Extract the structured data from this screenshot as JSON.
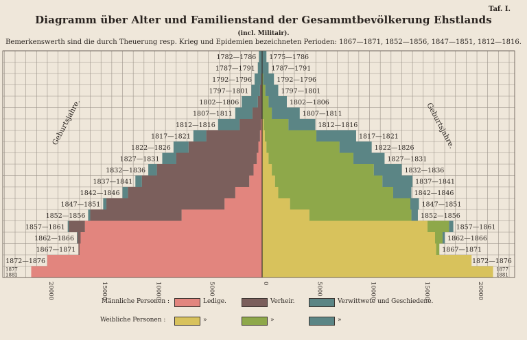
{
  "header": {
    "plate": "Taf. I.",
    "title": "Diagramm über Alter und Familienstand der Gesammtbevölkerung Ehstlands",
    "subtitle": "(incl. Militair).",
    "note": "Bemerkenswerth sind die durch Theuerung resp. Krieg und Epidemien bezeichneten Perioden: 1867—1871, 1852—1856, 1847—1851, 1812—1816."
  },
  "legend": {
    "male_label": "Männliche Personen :",
    "female_label": "Weibliche Personen :",
    "categories": [
      "Ledige.",
      "Verheir.",
      "Verwittwete und Geschiedene."
    ],
    "ditto": "»",
    "colors": {
      "male": [
        "#e2857e",
        "#7b5f5c",
        "#5b8585"
      ],
      "female": [
        "#d8c25c",
        "#8ea84a",
        "#5b8585"
      ]
    }
  },
  "chart_data": {
    "type": "population-pyramid",
    "side_label": "Geburtsjahre.",
    "x_ticks": [
      20000,
      15000,
      10000,
      5000,
      0,
      5000,
      10000,
      15000,
      20000
    ],
    "xlim": [
      0,
      22000
    ],
    "age_groups": [
      "1782—1786",
      "1787—1791",
      "1792—1796",
      "1797—1801",
      "1802—1806",
      "1807—1811",
      "1812—1816",
      "1817—1821",
      "1822—1826",
      "1827—1831",
      "1832—1836",
      "1837—1841",
      "1842—1846",
      "1847—1851",
      "1852—1856",
      "1857—1861",
      "1862—1866",
      "1867—1871",
      "1872—1876",
      "1877—1881"
    ],
    "male_labels": [
      "1782—1786",
      "1787—1791",
      "1792—1796",
      "1797—1801",
      "1802—1806",
      "1807—1811",
      "1812—1816",
      "1817—1821",
      "1822—1826",
      "1827—1831",
      "1832—1836",
      "1837—1841",
      "1842—1846",
      "1847—1851",
      "1852—1856",
      "1857—1861",
      "1862—1866",
      "1867—1871",
      "1872—1876",
      "1877 1881"
    ],
    "female_labels": [
      "1775—1786",
      "1787—1791",
      "1792—1796",
      "1797—1801",
      "1802—1806",
      "1807—1811",
      "1812—1816",
      "1817—1821",
      "1822—1826",
      "1827—1831",
      "1832—1836",
      "1837—1841",
      "1842—1846",
      "1847—1851",
      "1852—1856",
      "1857—1861",
      "1862—1866",
      "1867—1871",
      "1872—1876",
      "1877 1881"
    ],
    "male": {
      "ledige": [
        0,
        0,
        0,
        0,
        0,
        0,
        100,
        200,
        350,
        500,
        800,
        1200,
        2500,
        3500,
        7500,
        16500,
        16900,
        17000,
        20000,
        21500
      ],
      "verheiratet": [
        0,
        0,
        100,
        200,
        400,
        900,
        2000,
        5000,
        6500,
        7500,
        9000,
        10000,
        10000,
        11000,
        8500,
        1500,
        300,
        100,
        0,
        0
      ],
      "verwitwet": [
        300,
        400,
        600,
        800,
        1500,
        1600,
        2000,
        1200,
        1400,
        1300,
        800,
        600,
        500,
        300,
        200,
        100,
        50,
        0,
        0,
        0
      ]
    },
    "female": {
      "ledige": [
        0,
        0,
        0,
        0,
        0,
        0,
        150,
        250,
        400,
        600,
        900,
        1200,
        1500,
        2600,
        4400,
        15400,
        16100,
        16200,
        19500,
        21500
      ],
      "verheiratet": [
        0,
        0,
        100,
        300,
        600,
        900,
        2300,
        4800,
        6800,
        7900,
        9500,
        10000,
        10700,
        11200,
        9500,
        2000,
        700,
        300,
        0,
        0
      ],
      "verwitwet": [
        400,
        600,
        1000,
        1200,
        1700,
        2600,
        2500,
        3700,
        3000,
        2900,
        2600,
        2800,
        1700,
        800,
        600,
        400,
        200,
        0,
        0,
        0
      ]
    }
  }
}
